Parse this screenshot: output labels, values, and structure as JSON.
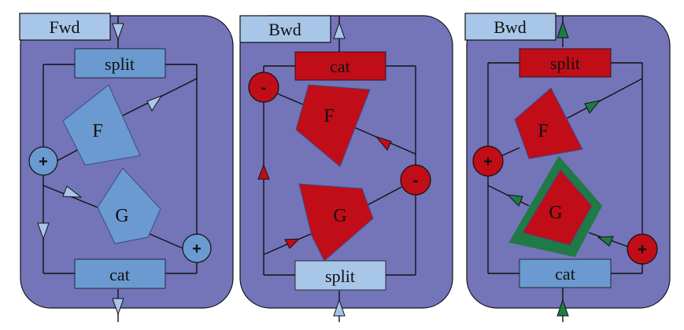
{
  "colors": {
    "panel": "#7474b9",
    "light_blue": "#6a9ad0",
    "pale_blue": "#a8c6e8",
    "red": "#c00d17",
    "green": "#1f7a46",
    "line": "#111111"
  },
  "panels": [
    {
      "tab": "Fwd",
      "top_block": "split",
      "bottom_block": "cat",
      "shape_f": "F",
      "shape_g": "G",
      "op_left": "+",
      "op_right": "+"
    },
    {
      "tab": "Bwd",
      "top_block": "cat",
      "bottom_block": "split",
      "shape_f": "F",
      "shape_g": "G",
      "op_left": "-",
      "op_right": "-"
    },
    {
      "tab": "Bwd",
      "top_block": "split",
      "bottom_block": "cat",
      "shape_f": "F",
      "shape_g": "G",
      "op_left": "+",
      "op_right": "+"
    }
  ]
}
